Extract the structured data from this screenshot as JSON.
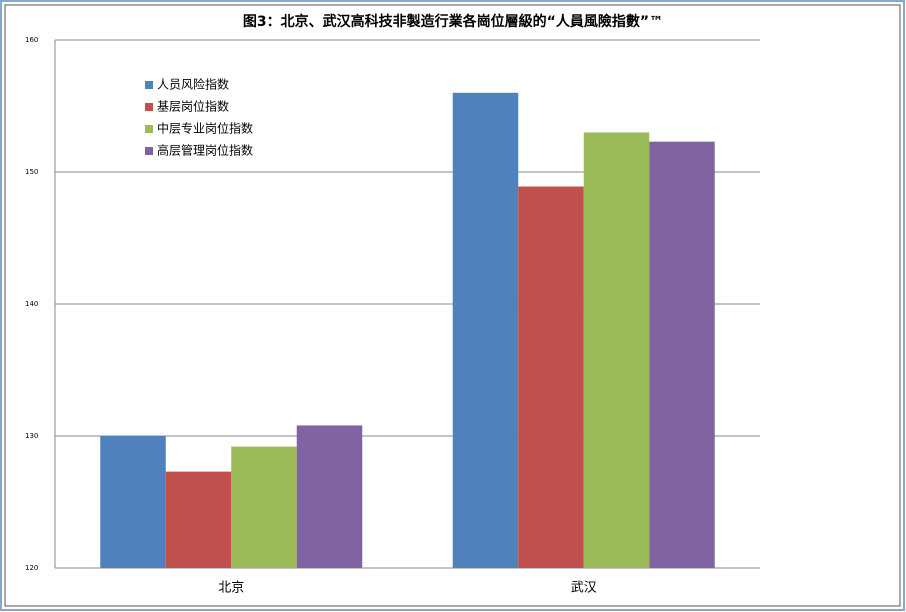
{
  "chart_data": {
    "type": "bar",
    "title": "图3：北京、武汉高科技非製造行業各崗位層級的“人員風險指數”™",
    "categories": [
      "北京",
      "武汉"
    ],
    "series": [
      {
        "name": "人员风险指数",
        "color": "#4f81bd",
        "values": [
          130.0,
          156.0
        ]
      },
      {
        "name": "基层岗位指数",
        "color": "#c0504d",
        "values": [
          127.3,
          148.9
        ]
      },
      {
        "name": "中层专业岗位指数",
        "color": "#9bbb59",
        "values": [
          129.2,
          153.0
        ]
      },
      {
        "name": "高层管理岗位指数",
        "color": "#8064a2",
        "values": [
          130.8,
          152.3
        ]
      }
    ],
    "ylim": [
      120,
      160
    ],
    "yticks": [
      120,
      130,
      140,
      150,
      160
    ],
    "grid": true,
    "legend": "top-left"
  }
}
